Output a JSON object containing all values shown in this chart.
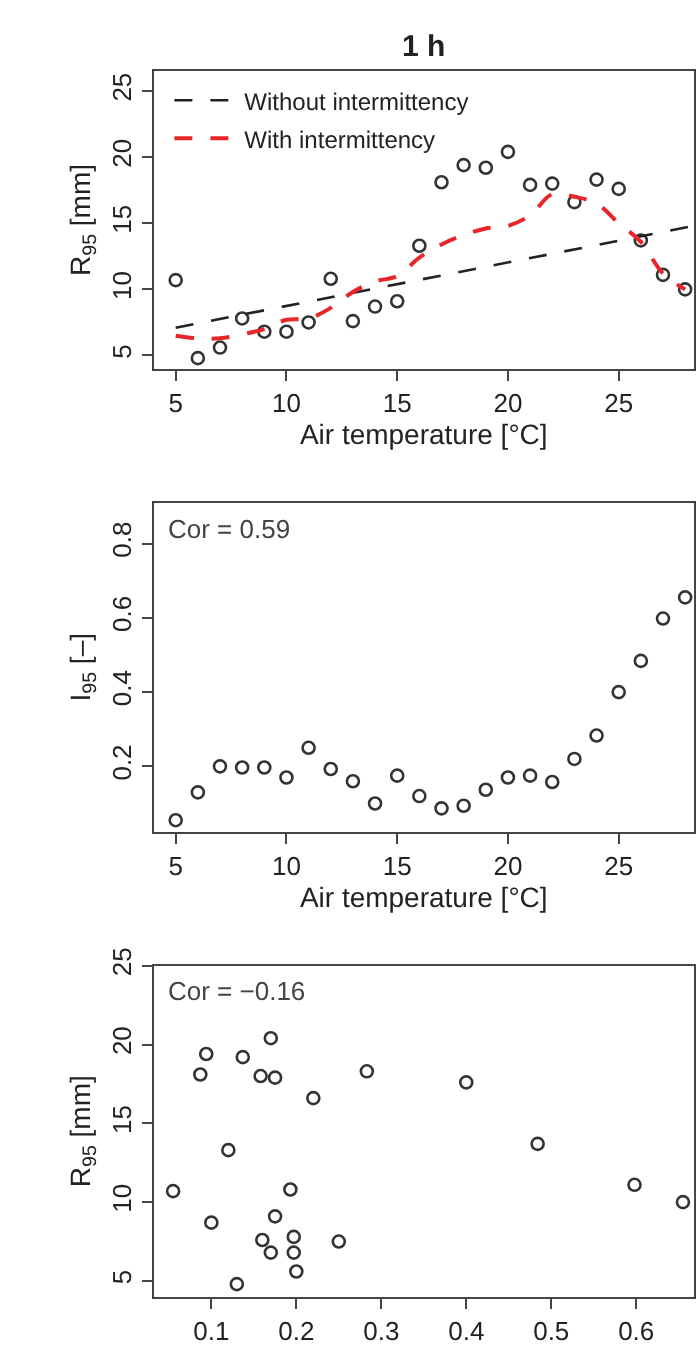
{
  "chart_data": [
    {
      "type": "scatter",
      "title": "1 h",
      "xlabel": "Air temperature [°C]",
      "ylabel": "R$_{95}$ [mm]",
      "xlim": [
        4,
        28.4
      ],
      "ylim": [
        4,
        26.5
      ],
      "xticks": [
        5,
        10,
        15,
        20,
        25
      ],
      "yticks": [
        5,
        10,
        15,
        20,
        25
      ],
      "legend": "top left",
      "marker": "circle",
      "x": [
        5,
        6,
        7,
        8,
        9,
        10,
        11,
        12,
        13,
        14,
        15,
        16,
        17,
        18,
        19,
        20,
        21,
        22,
        23,
        24,
        25,
        26,
        27,
        28
      ],
      "series": [
        {
          "color": "#333333",
          "values": [
            10.7,
            4.8,
            5.6,
            7.8,
            6.8,
            6.8,
            7.5,
            10.8,
            7.6,
            8.7,
            9.1,
            13.3,
            18.1,
            19.4,
            19.2,
            20.4,
            17.9,
            18.0,
            16.6,
            18.3,
            17.6,
            13.7,
            11.1,
            10.0
          ]
        },
        {
          "type": "line",
          "name": "Without intermittency",
          "color": "#222222",
          "line_style": "dashed",
          "marker": "none",
          "x": [
            5,
            28.4
          ],
          "values": [
            7.1,
            14.8
          ]
        },
        {
          "type": "line",
          "name": "With intermittency",
          "color": "#e8262a",
          "line_style": "dashed",
          "marker": "none",
          "values": [
            6.5,
            6.3,
            6.3,
            6.6,
            7.0,
            7.7,
            7.8,
            8.6,
            9.8,
            10.6,
            11.0,
            12.4,
            13.4,
            14.1,
            14.6,
            14.8,
            15.6,
            17.2,
            17.0,
            16.5,
            15.0,
            13.6,
            11.2,
            10.0
          ]
        }
      ]
    },
    {
      "type": "scatter",
      "xlabel": "Air temperature [°C]",
      "ylabel": "I$_{95}$ [–]",
      "xlim": [
        4,
        28.4
      ],
      "ylim": [
        0.024,
        0.91
      ],
      "xticks": [
        5,
        10,
        15,
        20,
        25
      ],
      "yticks": [
        0.2,
        0.4,
        0.6,
        0.8
      ],
      "marker": "circle",
      "annotations": [
        "Cor = 0.59"
      ],
      "x": [
        5,
        6,
        7,
        8,
        9,
        10,
        11,
        12,
        13,
        14,
        15,
        16,
        17,
        18,
        19,
        20,
        21,
        22,
        23,
        24,
        25,
        26,
        27,
        28
      ],
      "series": [
        {
          "color": "#333333",
          "values": [
            0.055,
            0.13,
            0.2,
            0.197,
            0.197,
            0.17,
            0.25,
            0.193,
            0.16,
            0.1,
            0.175,
            0.12,
            0.087,
            0.094,
            0.137,
            0.17,
            0.175,
            0.158,
            0.22,
            0.283,
            0.4,
            0.484,
            0.598,
            0.655
          ]
        }
      ]
    },
    {
      "type": "scatter",
      "ylabel": "R$_{95}$ [mm]",
      "xlim": [
        0.032,
        0.668
      ],
      "ylim": [
        4,
        25
      ],
      "xticks": [
        0.1,
        0.2,
        0.3,
        0.4,
        0.5,
        0.6
      ],
      "yticks": [
        5,
        10,
        15,
        20,
        25
      ],
      "marker": "circle",
      "annotations": [
        "Cor = −0.16"
      ],
      "x": [
        0.055,
        0.13,
        0.2,
        0.197,
        0.197,
        0.17,
        0.25,
        0.193,
        0.16,
        0.1,
        0.175,
        0.12,
        0.087,
        0.094,
        0.137,
        0.17,
        0.175,
        0.158,
        0.22,
        0.283,
        0.4,
        0.484,
        0.598,
        0.655
      ],
      "series": [
        {
          "color": "#333333",
          "values": [
            10.7,
            4.8,
            5.6,
            7.8,
            6.8,
            6.8,
            7.5,
            10.8,
            7.6,
            8.7,
            9.1,
            13.3,
            18.1,
            19.4,
            19.2,
            20.4,
            17.9,
            18.0,
            16.6,
            18.3,
            17.6,
            13.7,
            11.1,
            10.0
          ]
        }
      ]
    }
  ]
}
